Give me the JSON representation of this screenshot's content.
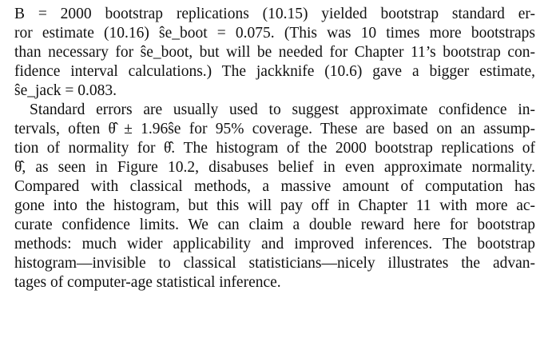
{
  "paragraphs": [
    {
      "lines": [
        "B = 2000 bootstrap replications (10.15) yielded bootstrap standard er-",
        "ror estimate (10.16) ŝe_boot = 0.075. (This was 10 times more bootstraps",
        "than necessary for ŝe_boot, but will be needed for Chapter 11’s bootstrap con-",
        "fidence interval calculations.) The jackknife (10.6) gave a bigger estimate,",
        "ŝe_jack = 0.083."
      ]
    },
    {
      "lines": [
        "Standard errors are usually used to suggest approximate confidence in-",
        "tervals, often θ̂ ± 1.96ŝe for 95% coverage. These are based on an assump-",
        "tion of normality for θ̂. The histogram of the 2000 bootstrap replications of",
        "θ̂, as seen in Figure 10.2, disabuses belief in even approximate normality.",
        "Compared with classical methods, a massive amount of computation has",
        "gone into the histogram, but this will pay off in Chapter 11 with more ac-",
        "curate confidence limits. We can claim a double reward here for bootstrap",
        "methods: much wider applicability and improved inferences. The bootstrap",
        "histogram—invisible to classical statisticians—nicely illustrates the advan-",
        "tages of computer-age statistical inference."
      ]
    }
  ]
}
